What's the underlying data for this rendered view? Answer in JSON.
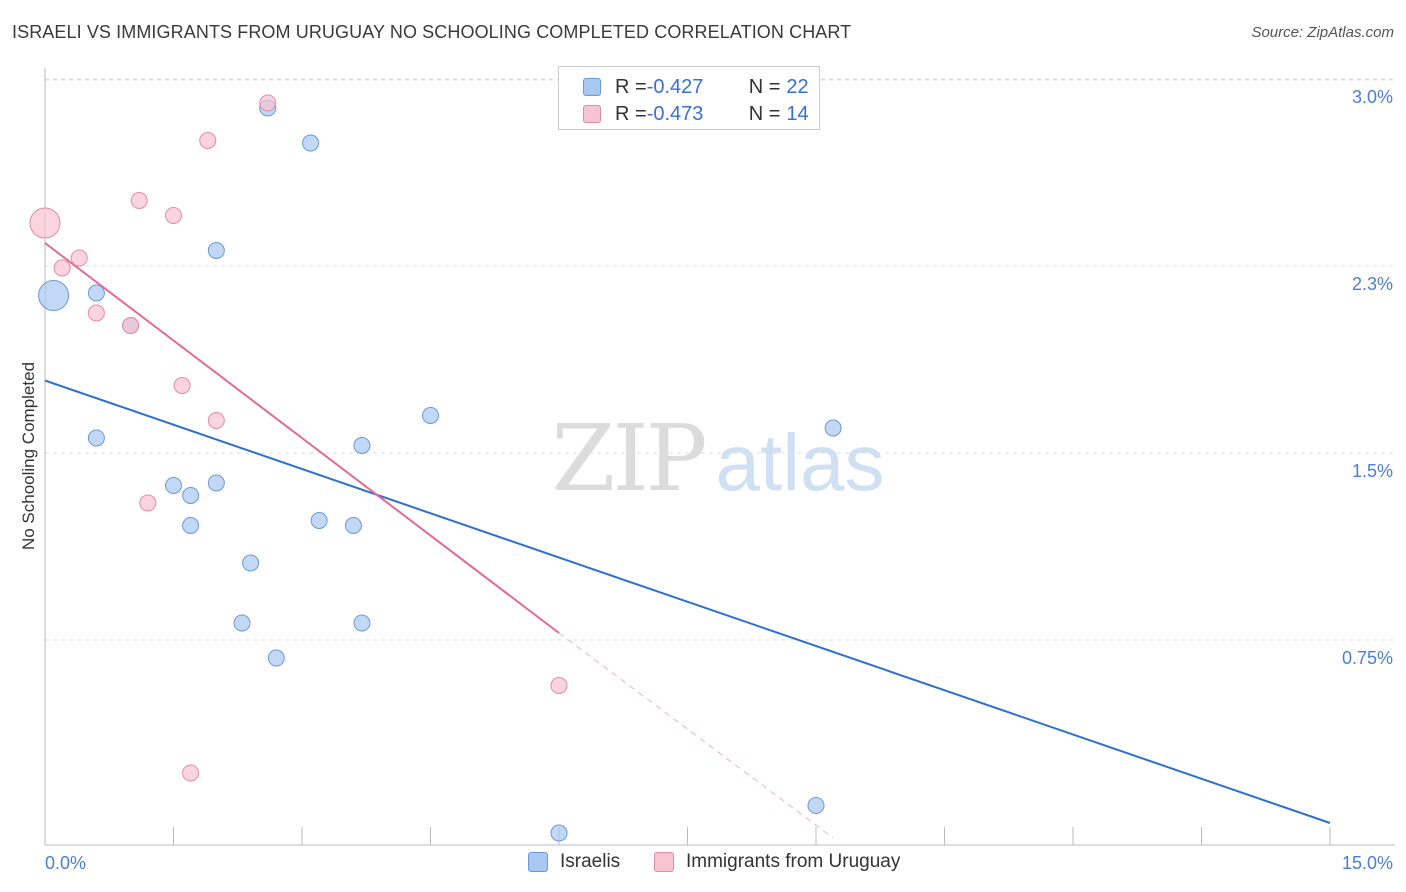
{
  "header": {
    "title": "ISRAELI VS IMMIGRANTS FROM URUGUAY NO SCHOOLING COMPLETED CORRELATION CHART",
    "source": "Source: ZipAtlas.com"
  },
  "watermark": {
    "zip": "ZIP",
    "atlas": "atlas"
  },
  "legend": {
    "rows": [
      {
        "r_label": "R = ",
        "r_value": "-0.427",
        "n_label": "N = ",
        "n_value": "22",
        "color": "#a9c8f2",
        "border": "#6a9ad8"
      },
      {
        "r_label": "R = ",
        "r_value": "-0.473",
        "n_label": "N = ",
        "n_value": "14",
        "color": "#f8c3d2",
        "border": "#e58aa6"
      }
    ]
  },
  "bottom_legend": {
    "israelis": "Israelis",
    "uruguay": "Immigrants from Uruguay"
  },
  "chart_data": {
    "type": "scatter",
    "title": "ISRAELI VS IMMIGRANTS FROM URUGUAY NO SCHOOLING COMPLETED CORRELATION CHART",
    "xlabel": "",
    "ylabel": "No Schooling Completed",
    "xlim": [
      0,
      15
    ],
    "ylim": [
      0,
      3.0
    ],
    "x_tick_labels": [
      "0.0%",
      "15.0%"
    ],
    "y_ticks": [
      0.75,
      1.5,
      2.25,
      3.0
    ],
    "y_tick_labels": [
      "0.75%",
      "1.5%",
      "2.3%",
      "3.0%"
    ],
    "grid": "horizontal dashed",
    "legend_position": "top-center",
    "series": [
      {
        "name": "Israelis",
        "color": "#a9c8f2",
        "stroke": "#6a9ad8",
        "line_color": "#2e6fd4",
        "trend": {
          "x": [
            0,
            15
          ],
          "y": [
            1.83,
            0.06
          ]
        },
        "points": [
          {
            "x": 0.1,
            "y": 2.17,
            "big": true
          },
          {
            "x": 0.6,
            "y": 2.18
          },
          {
            "x": 1.0,
            "y": 2.05
          },
          {
            "x": 2.6,
            "y": 2.92
          },
          {
            "x": 3.1,
            "y": 2.78
          },
          {
            "x": 2.0,
            "y": 2.35
          },
          {
            "x": 0.6,
            "y": 1.6
          },
          {
            "x": 1.5,
            "y": 1.41
          },
          {
            "x": 1.7,
            "y": 1.37
          },
          {
            "x": 2.0,
            "y": 1.42
          },
          {
            "x": 1.7,
            "y": 1.25
          },
          {
            "x": 2.4,
            "y": 1.1
          },
          {
            "x": 2.3,
            "y": 0.86
          },
          {
            "x": 2.7,
            "y": 0.72
          },
          {
            "x": 3.2,
            "y": 1.27
          },
          {
            "x": 3.6,
            "y": 1.25
          },
          {
            "x": 3.7,
            "y": 1.57
          },
          {
            "x": 4.5,
            "y": 1.69
          },
          {
            "x": 3.7,
            "y": 0.86
          },
          {
            "x": 9.2,
            "y": 1.64
          },
          {
            "x": 9.0,
            "y": 0.13
          },
          {
            "x": 6.0,
            "y": 0.02
          }
        ]
      },
      {
        "name": "Immigrants from Uruguay",
        "color": "#f8c3d2",
        "stroke": "#e58aa6",
        "line_color": "#e46a93",
        "trend": {
          "x": [
            0,
            6.0
          ],
          "y": [
            2.38,
            0.82
          ]
        },
        "trend_dashed": {
          "x": [
            6.0,
            9.2
          ],
          "y": [
            0.82,
            0.0
          ]
        },
        "points": [
          {
            "x": 0.0,
            "y": 2.46,
            "big": true
          },
          {
            "x": 2.6,
            "y": 2.94
          },
          {
            "x": 1.9,
            "y": 2.79
          },
          {
            "x": 1.1,
            "y": 2.55
          },
          {
            "x": 1.5,
            "y": 2.49
          },
          {
            "x": 0.4,
            "y": 2.32
          },
          {
            "x": 0.2,
            "y": 2.28
          },
          {
            "x": 0.6,
            "y": 2.1
          },
          {
            "x": 1.0,
            "y": 2.05
          },
          {
            "x": 1.6,
            "y": 1.81
          },
          {
            "x": 2.0,
            "y": 1.67
          },
          {
            "x": 1.2,
            "y": 1.34
          },
          {
            "x": 6.0,
            "y": 0.61
          },
          {
            "x": 1.7,
            "y": 0.26
          }
        ]
      }
    ]
  }
}
